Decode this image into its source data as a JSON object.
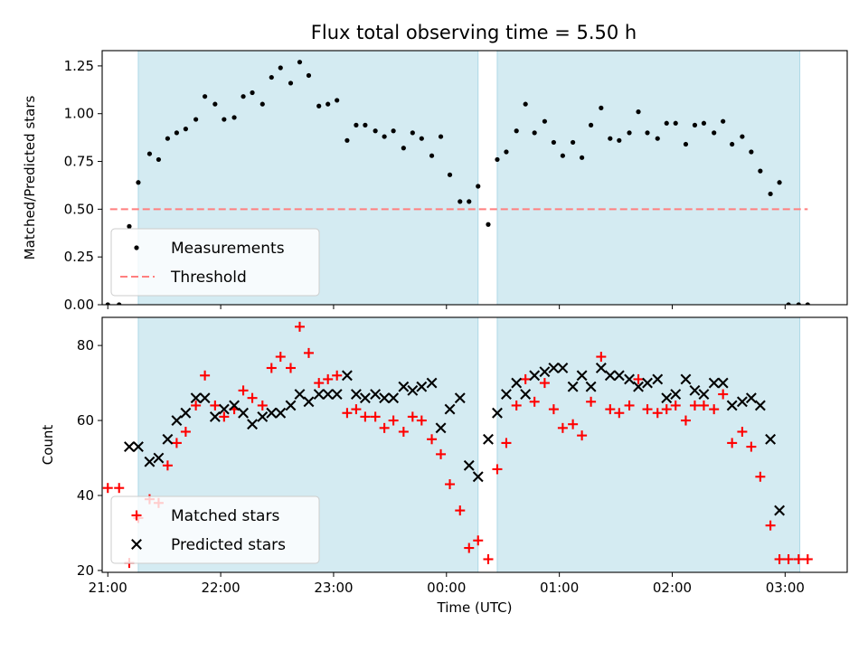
{
  "figure": {
    "title": "Flux total observing time = 5.50 h"
  },
  "colors": {
    "span": "#add8e6",
    "matched": "#ff0000",
    "predicted": "#000000",
    "threshold": "#ff7f7f",
    "measurement": "#000000"
  },
  "chart_data": [
    {
      "type": "scatter",
      "title": "Flux total observing time = 5.50 h",
      "xlabel": "",
      "ylabel": "Matched/Predicted stars",
      "xlim": [
        20.95,
        27.55
      ],
      "ylim": [
        0,
        1.33
      ],
      "grid": false,
      "legend": "lower-left",
      "x_ticks": [
        {
          "t": 21,
          "label": "21:00"
        },
        {
          "t": 22,
          "label": "22:00"
        },
        {
          "t": 23,
          "label": "23:00"
        },
        {
          "t": 24,
          "label": "00:00"
        },
        {
          "t": 25,
          "label": "01:00"
        },
        {
          "t": 26,
          "label": "02:00"
        },
        {
          "t": 27,
          "label": "03:00"
        }
      ],
      "show_x_labels": false,
      "y_ticks": [
        {
          "v": 0,
          "label": "0.00"
        },
        {
          "v": 0.25,
          "label": "0.25"
        },
        {
          "v": 0.5,
          "label": "0.50"
        },
        {
          "v": 0.75,
          "label": "0.75"
        },
        {
          "v": 1.0,
          "label": "1.00"
        },
        {
          "v": 1.25,
          "label": "1.25"
        }
      ],
      "spans": [
        [
          21.27,
          24.28
        ],
        [
          24.45,
          27.13
        ]
      ],
      "threshold": {
        "name": "Threshold",
        "y": 0.5,
        "x_range": [
          21.02,
          27.2
        ]
      },
      "series": [
        {
          "name": "Measurements",
          "marker": "dot",
          "points": [
            [
              21.0,
              0.0
            ],
            [
              21.1,
              0.0
            ],
            [
              21.19,
              0.41
            ],
            [
              21.27,
              0.64
            ],
            [
              21.37,
              0.79
            ],
            [
              21.45,
              0.76
            ],
            [
              21.53,
              0.87
            ],
            [
              21.61,
              0.9
            ],
            [
              21.69,
              0.92
            ],
            [
              21.78,
              0.97
            ],
            [
              21.86,
              1.09
            ],
            [
              21.95,
              1.05
            ],
            [
              22.03,
              0.97
            ],
            [
              22.12,
              0.98
            ],
            [
              22.2,
              1.09
            ],
            [
              22.28,
              1.11
            ],
            [
              22.37,
              1.05
            ],
            [
              22.45,
              1.19
            ],
            [
              22.53,
              1.24
            ],
            [
              22.62,
              1.16
            ],
            [
              22.7,
              1.27
            ],
            [
              22.78,
              1.2
            ],
            [
              22.87,
              1.04
            ],
            [
              22.95,
              1.05
            ],
            [
              23.03,
              1.07
            ],
            [
              23.12,
              0.86
            ],
            [
              23.2,
              0.94
            ],
            [
              23.28,
              0.94
            ],
            [
              23.37,
              0.91
            ],
            [
              23.45,
              0.88
            ],
            [
              23.53,
              0.91
            ],
            [
              23.62,
              0.82
            ],
            [
              23.7,
              0.9
            ],
            [
              23.78,
              0.87
            ],
            [
              23.87,
              0.78
            ],
            [
              23.95,
              0.88
            ],
            [
              24.03,
              0.68
            ],
            [
              24.12,
              0.54
            ],
            [
              24.2,
              0.54
            ],
            [
              24.28,
              0.62
            ],
            [
              24.37,
              0.42
            ],
            [
              24.45,
              0.76
            ],
            [
              24.53,
              0.8
            ],
            [
              24.62,
              0.91
            ],
            [
              24.7,
              1.05
            ],
            [
              24.78,
              0.9
            ],
            [
              24.87,
              0.96
            ],
            [
              24.95,
              0.85
            ],
            [
              25.03,
              0.78
            ],
            [
              25.12,
              0.85
            ],
            [
              25.2,
              0.77
            ],
            [
              25.28,
              0.94
            ],
            [
              25.37,
              1.03
            ],
            [
              25.45,
              0.87
            ],
            [
              25.53,
              0.86
            ],
            [
              25.62,
              0.9
            ],
            [
              25.7,
              1.01
            ],
            [
              25.78,
              0.9
            ],
            [
              25.87,
              0.87
            ],
            [
              25.95,
              0.95
            ],
            [
              26.03,
              0.95
            ],
            [
              26.12,
              0.84
            ],
            [
              26.2,
              0.94
            ],
            [
              26.28,
              0.95
            ],
            [
              26.37,
              0.9
            ],
            [
              26.45,
              0.96
            ],
            [
              26.53,
              0.84
            ],
            [
              26.62,
              0.88
            ],
            [
              26.7,
              0.8
            ],
            [
              26.78,
              0.7
            ],
            [
              26.87,
              0.58
            ],
            [
              26.95,
              0.64
            ],
            [
              27.03,
              0.0
            ],
            [
              27.12,
              0.0
            ],
            [
              27.2,
              0.0
            ]
          ]
        }
      ]
    },
    {
      "type": "scatter",
      "title": "",
      "xlabel": "Time (UTC)",
      "ylabel": "Count",
      "xlim": [
        20.95,
        27.55
      ],
      "ylim": [
        19.5,
        87.5
      ],
      "grid": false,
      "legend": "lower-left",
      "x_ticks": [
        {
          "t": 21,
          "label": "21:00"
        },
        {
          "t": 22,
          "label": "22:00"
        },
        {
          "t": 23,
          "label": "23:00"
        },
        {
          "t": 24,
          "label": "00:00"
        },
        {
          "t": 25,
          "label": "01:00"
        },
        {
          "t": 26,
          "label": "02:00"
        },
        {
          "t": 27,
          "label": "03:00"
        }
      ],
      "show_x_labels": true,
      "y_ticks": [
        {
          "v": 20,
          "label": "20"
        },
        {
          "v": 40,
          "label": "40"
        },
        {
          "v": 60,
          "label": "60"
        },
        {
          "v": 80,
          "label": "80"
        }
      ],
      "spans": [
        [
          21.27,
          24.28
        ],
        [
          24.45,
          27.13
        ]
      ],
      "series": [
        {
          "name": "Matched stars",
          "marker": "plus",
          "points": [
            [
              21.0,
              42
            ],
            [
              21.1,
              42
            ],
            [
              21.19,
              22
            ],
            [
              21.27,
              34
            ],
            [
              21.37,
              39
            ],
            [
              21.45,
              38
            ],
            [
              21.53,
              48
            ],
            [
              21.61,
              54
            ],
            [
              21.69,
              57
            ],
            [
              21.78,
              64
            ],
            [
              21.86,
              72
            ],
            [
              21.95,
              64
            ],
            [
              22.03,
              61
            ],
            [
              22.12,
              63
            ],
            [
              22.2,
              68
            ],
            [
              22.28,
              66
            ],
            [
              22.37,
              64
            ],
            [
              22.45,
              74
            ],
            [
              22.53,
              77
            ],
            [
              22.62,
              74
            ],
            [
              22.7,
              85
            ],
            [
              22.78,
              78
            ],
            [
              22.87,
              70
            ],
            [
              22.95,
              71
            ],
            [
              23.03,
              72
            ],
            [
              23.12,
              62
            ],
            [
              23.2,
              63
            ],
            [
              23.28,
              61
            ],
            [
              23.37,
              61
            ],
            [
              23.45,
              58
            ],
            [
              23.53,
              60
            ],
            [
              23.62,
              57
            ],
            [
              23.7,
              61
            ],
            [
              23.78,
              60
            ],
            [
              23.87,
              55
            ],
            [
              23.95,
              51
            ],
            [
              24.03,
              43
            ],
            [
              24.12,
              36
            ],
            [
              24.2,
              26
            ],
            [
              24.28,
              28
            ],
            [
              24.37,
              23
            ],
            [
              24.45,
              47
            ],
            [
              24.53,
              54
            ],
            [
              24.62,
              64
            ],
            [
              24.7,
              71
            ],
            [
              24.78,
              65
            ],
            [
              24.87,
              70
            ],
            [
              24.95,
              63
            ],
            [
              25.03,
              58
            ],
            [
              25.12,
              59
            ],
            [
              25.2,
              56
            ],
            [
              25.28,
              65
            ],
            [
              25.37,
              77
            ],
            [
              25.45,
              63
            ],
            [
              25.53,
              62
            ],
            [
              25.62,
              64
            ],
            [
              25.7,
              71
            ],
            [
              25.78,
              63
            ],
            [
              25.87,
              62
            ],
            [
              25.95,
              63
            ],
            [
              26.03,
              64
            ],
            [
              26.12,
              60
            ],
            [
              26.2,
              64
            ],
            [
              26.28,
              64
            ],
            [
              26.37,
              63
            ],
            [
              26.45,
              67
            ],
            [
              26.53,
              54
            ],
            [
              26.62,
              57
            ],
            [
              26.7,
              53
            ],
            [
              26.78,
              45
            ],
            [
              26.87,
              32
            ],
            [
              26.95,
              23
            ],
            [
              27.03,
              23
            ],
            [
              27.12,
              23
            ],
            [
              27.2,
              23
            ]
          ]
        },
        {
          "name": "Predicted stars",
          "marker": "cross",
          "points": [
            [
              21.19,
              53
            ],
            [
              21.27,
              53
            ],
            [
              21.37,
              49
            ],
            [
              21.45,
              50
            ],
            [
              21.53,
              55
            ],
            [
              21.61,
              60
            ],
            [
              21.69,
              62
            ],
            [
              21.78,
              66
            ],
            [
              21.86,
              66
            ],
            [
              21.95,
              61
            ],
            [
              22.03,
              63
            ],
            [
              22.12,
              64
            ],
            [
              22.2,
              62
            ],
            [
              22.28,
              59
            ],
            [
              22.37,
              61
            ],
            [
              22.45,
              62
            ],
            [
              22.53,
              62
            ],
            [
              22.62,
              64
            ],
            [
              22.7,
              67
            ],
            [
              22.78,
              65
            ],
            [
              22.87,
              67
            ],
            [
              22.95,
              67
            ],
            [
              23.03,
              67
            ],
            [
              23.12,
              72
            ],
            [
              23.2,
              67
            ],
            [
              23.28,
              66
            ],
            [
              23.37,
              67
            ],
            [
              23.45,
              66
            ],
            [
              23.53,
              66
            ],
            [
              23.62,
              69
            ],
            [
              23.7,
              68
            ],
            [
              23.78,
              69
            ],
            [
              23.87,
              70
            ],
            [
              23.95,
              58
            ],
            [
              24.03,
              63
            ],
            [
              24.12,
              66
            ],
            [
              24.2,
              48
            ],
            [
              24.28,
              45
            ],
            [
              24.37,
              55
            ],
            [
              24.45,
              62
            ],
            [
              24.53,
              67
            ],
            [
              24.62,
              70
            ],
            [
              24.7,
              67
            ],
            [
              24.78,
              72
            ],
            [
              24.87,
              73
            ],
            [
              24.95,
              74
            ],
            [
              25.03,
              74
            ],
            [
              25.12,
              69
            ],
            [
              25.2,
              72
            ],
            [
              25.28,
              69
            ],
            [
              25.37,
              74
            ],
            [
              25.45,
              72
            ],
            [
              25.53,
              72
            ],
            [
              25.62,
              71
            ],
            [
              25.7,
              69
            ],
            [
              25.78,
              70
            ],
            [
              25.87,
              71
            ],
            [
              25.95,
              66
            ],
            [
              26.03,
              67
            ],
            [
              26.12,
              71
            ],
            [
              26.2,
              68
            ],
            [
              26.28,
              67
            ],
            [
              26.37,
              70
            ],
            [
              26.45,
              70
            ],
            [
              26.53,
              64
            ],
            [
              26.62,
              65
            ],
            [
              26.7,
              66
            ],
            [
              26.78,
              64
            ],
            [
              26.87,
              55
            ],
            [
              26.95,
              36
            ]
          ]
        }
      ]
    }
  ]
}
